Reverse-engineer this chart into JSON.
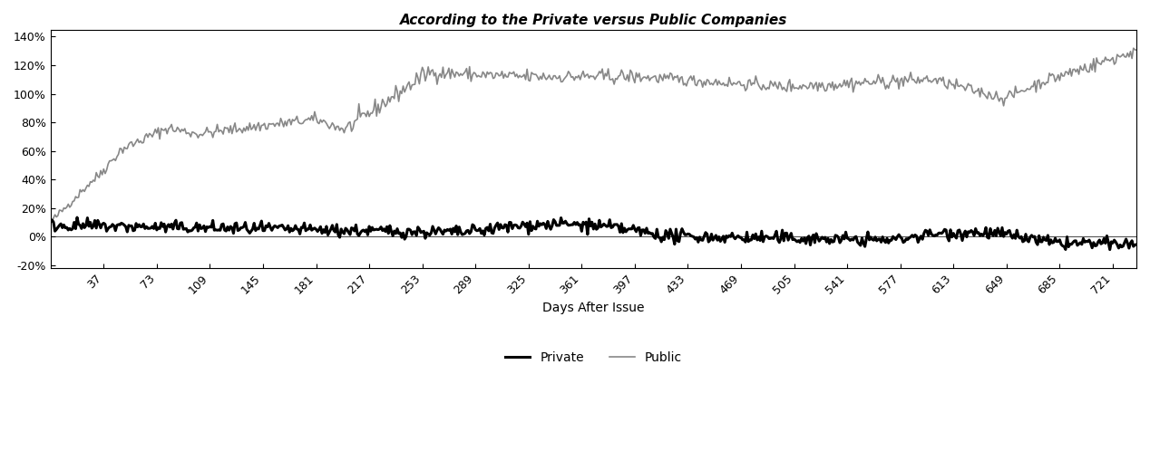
{
  "title": "According to the Private versus Public Companies",
  "xlabel": "Days After Issue",
  "x_ticks": [
    37,
    73,
    109,
    145,
    181,
    217,
    253,
    289,
    325,
    361,
    397,
    433,
    469,
    505,
    541,
    577,
    613,
    649,
    685,
    721
  ],
  "yticks": [
    -0.2,
    0.0,
    0.2,
    0.4,
    0.6,
    0.8,
    1.0,
    1.2,
    1.4
  ],
  "ylim_low": -0.22,
  "ylim_high": 1.45,
  "xlim_low": 1,
  "xlim_high": 737,
  "private_color": "#000000",
  "public_color": "#888888",
  "private_linewidth": 2.2,
  "public_linewidth": 1.2,
  "background_color": "#ffffff",
  "legend_private": "Private",
  "legend_public": "Public",
  "title_fontsize": 11,
  "label_fontsize": 10,
  "tick_fontsize": 9
}
